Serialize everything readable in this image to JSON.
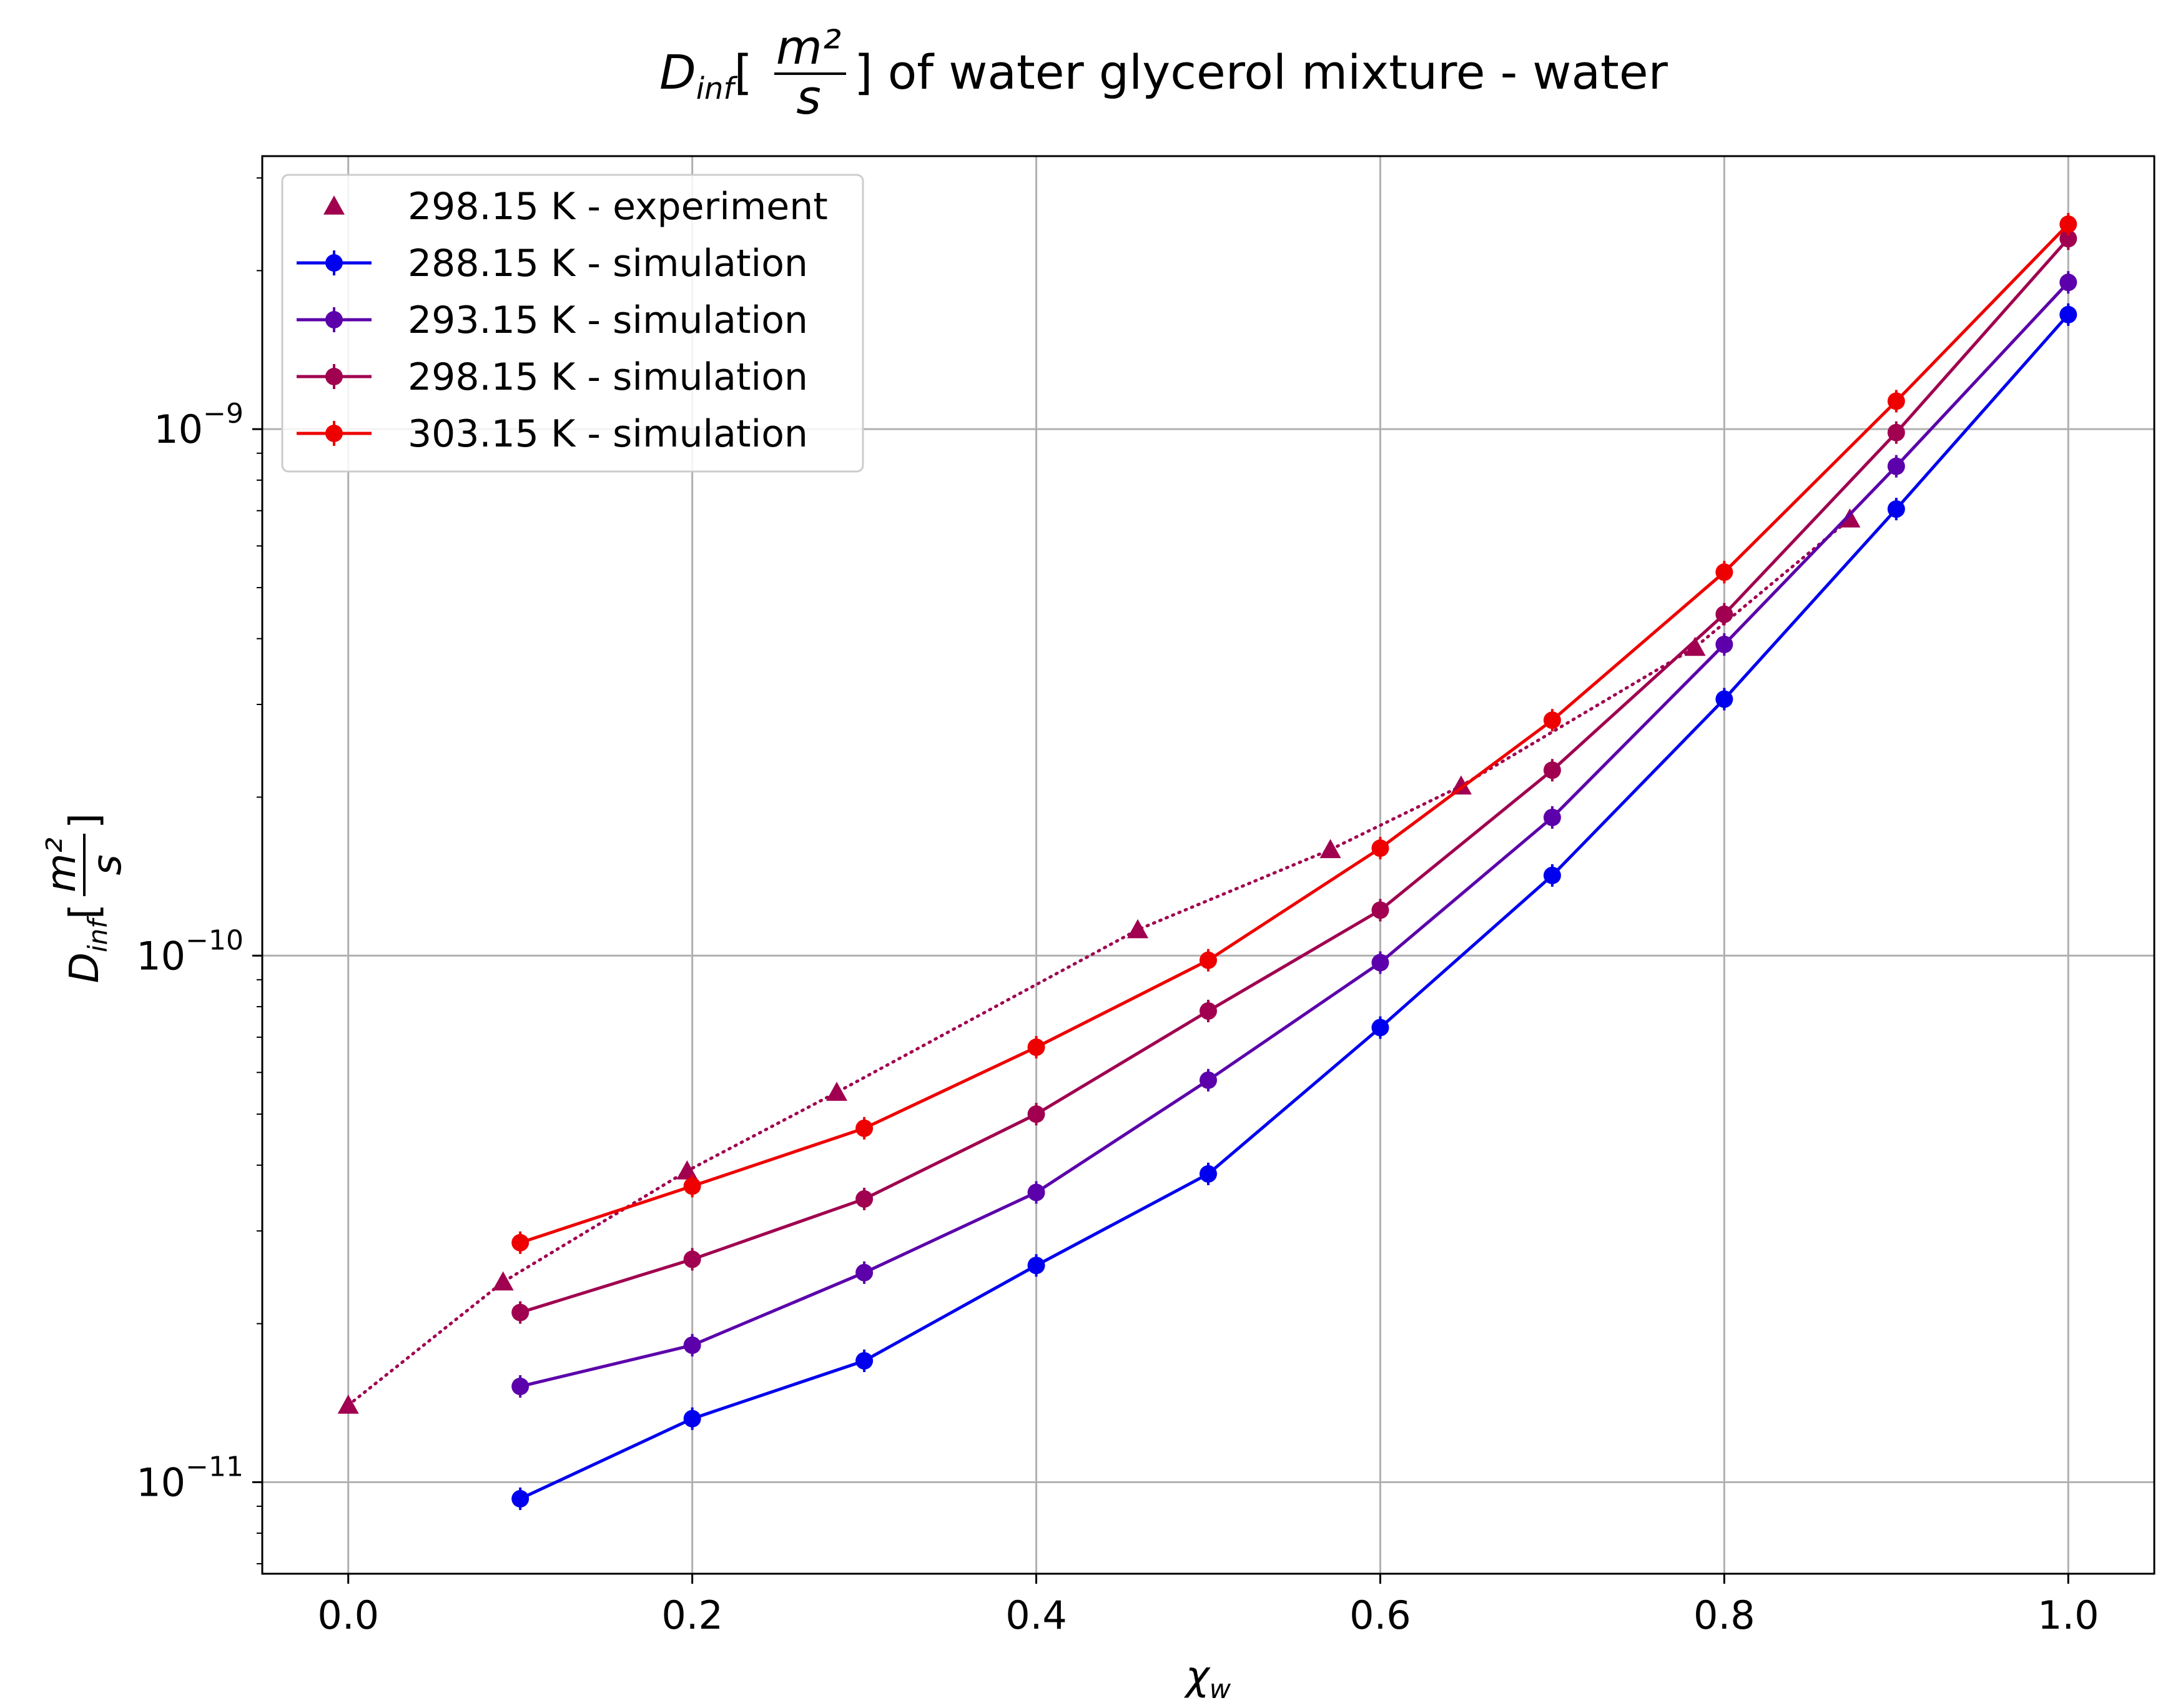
{
  "chart_data": {
    "type": "line",
    "title": "Dinf[m²/s] of water glycerol mixture - water",
    "title_parts": {
      "d": "D",
      "d_sub": "inf",
      "frac_num": "m²",
      "frac_den": "s",
      "rest": "] of water glycerol mixture - water"
    },
    "xlabel": "χw",
    "xlabel_parts": {
      "chi": "χ",
      "sub": "w"
    },
    "ylabel": "Dinf[m²/s]",
    "ylabel_parts": {
      "d": "D",
      "d_sub": "inf",
      "frac_num": "m²",
      "frac_den": "s"
    },
    "x_scale": "linear",
    "y_scale": "log",
    "xlim": [
      -0.05,
      1.05
    ],
    "ylim": [
      6.7e-12,
      3.3e-09
    ],
    "xticks": [
      0.0,
      0.2,
      0.4,
      0.6,
      0.8,
      1.0
    ],
    "xtick_labels": [
      "0.0",
      "0.2",
      "0.4",
      "0.6",
      "0.8",
      "1.0"
    ],
    "yticks": [
      1e-11,
      1e-10,
      1e-09
    ],
    "ytick_labels": [
      {
        "base": "10",
        "exp": "−11"
      },
      {
        "base": "10",
        "exp": "−10"
      },
      {
        "base": "10",
        "exp": "−9"
      }
    ],
    "grid": true,
    "legend_placement": "top-left",
    "series": [
      {
        "name": "298.15 K - experiment",
        "style": "dotted",
        "marker": "triangle",
        "color": "#a0004f",
        "x": [
          0.0,
          0.09,
          0.197,
          0.284,
          0.459,
          0.571,
          0.647,
          0.783,
          0.873
        ],
        "y": [
          1.4e-11,
          2.4e-11,
          3.9e-11,
          5.5e-11,
          1.12e-10,
          1.59e-10,
          2.1e-10,
          3.85e-10,
          6.75e-10
        ]
      },
      {
        "name": "288.15 K - simulation",
        "style": "solid",
        "marker": "circle",
        "color": "#0000ee",
        "x": [
          0.1,
          0.2,
          0.3,
          0.4,
          0.5,
          0.6,
          0.7,
          0.8,
          0.9,
          1.0
        ],
        "y": [
          9.3e-12,
          1.32e-11,
          1.7e-11,
          2.58e-11,
          3.85e-11,
          7.3e-11,
          1.42e-10,
          3.07e-10,
          7.05e-10,
          1.65e-09
        ]
      },
      {
        "name": "293.15 K - simulation",
        "style": "solid",
        "marker": "circle",
        "color": "#5b00aa",
        "x": [
          0.1,
          0.2,
          0.3,
          0.4,
          0.5,
          0.6,
          0.7,
          0.8,
          0.9,
          1.0
        ],
        "y": [
          1.52e-11,
          1.82e-11,
          2.5e-11,
          3.55e-11,
          5.8e-11,
          9.7e-11,
          1.83e-10,
          3.9e-10,
          8.5e-10,
          1.9e-09
        ]
      },
      {
        "name": "298.15 K - simulation",
        "style": "solid",
        "marker": "circle",
        "color": "#a0004f",
        "x": [
          0.1,
          0.2,
          0.3,
          0.4,
          0.5,
          0.6,
          0.7,
          0.8,
          0.9,
          1.0
        ],
        "y": [
          2.1e-11,
          2.65e-11,
          3.45e-11,
          5e-11,
          7.85e-11,
          1.22e-10,
          2.25e-10,
          4.45e-10,
          9.85e-10,
          2.3e-09
        ]
      },
      {
        "name": "303.15 K - simulation",
        "style": "solid",
        "marker": "circle",
        "color": "#ee0000",
        "x": [
          0.1,
          0.2,
          0.3,
          0.4,
          0.5,
          0.6,
          0.7,
          0.8,
          0.9,
          1.0
        ],
        "y": [
          2.85e-11,
          3.65e-11,
          4.7e-11,
          6.7e-11,
          9.8e-11,
          1.6e-10,
          2.8e-10,
          5.35e-10,
          1.13e-09,
          2.45e-09
        ]
      }
    ]
  }
}
